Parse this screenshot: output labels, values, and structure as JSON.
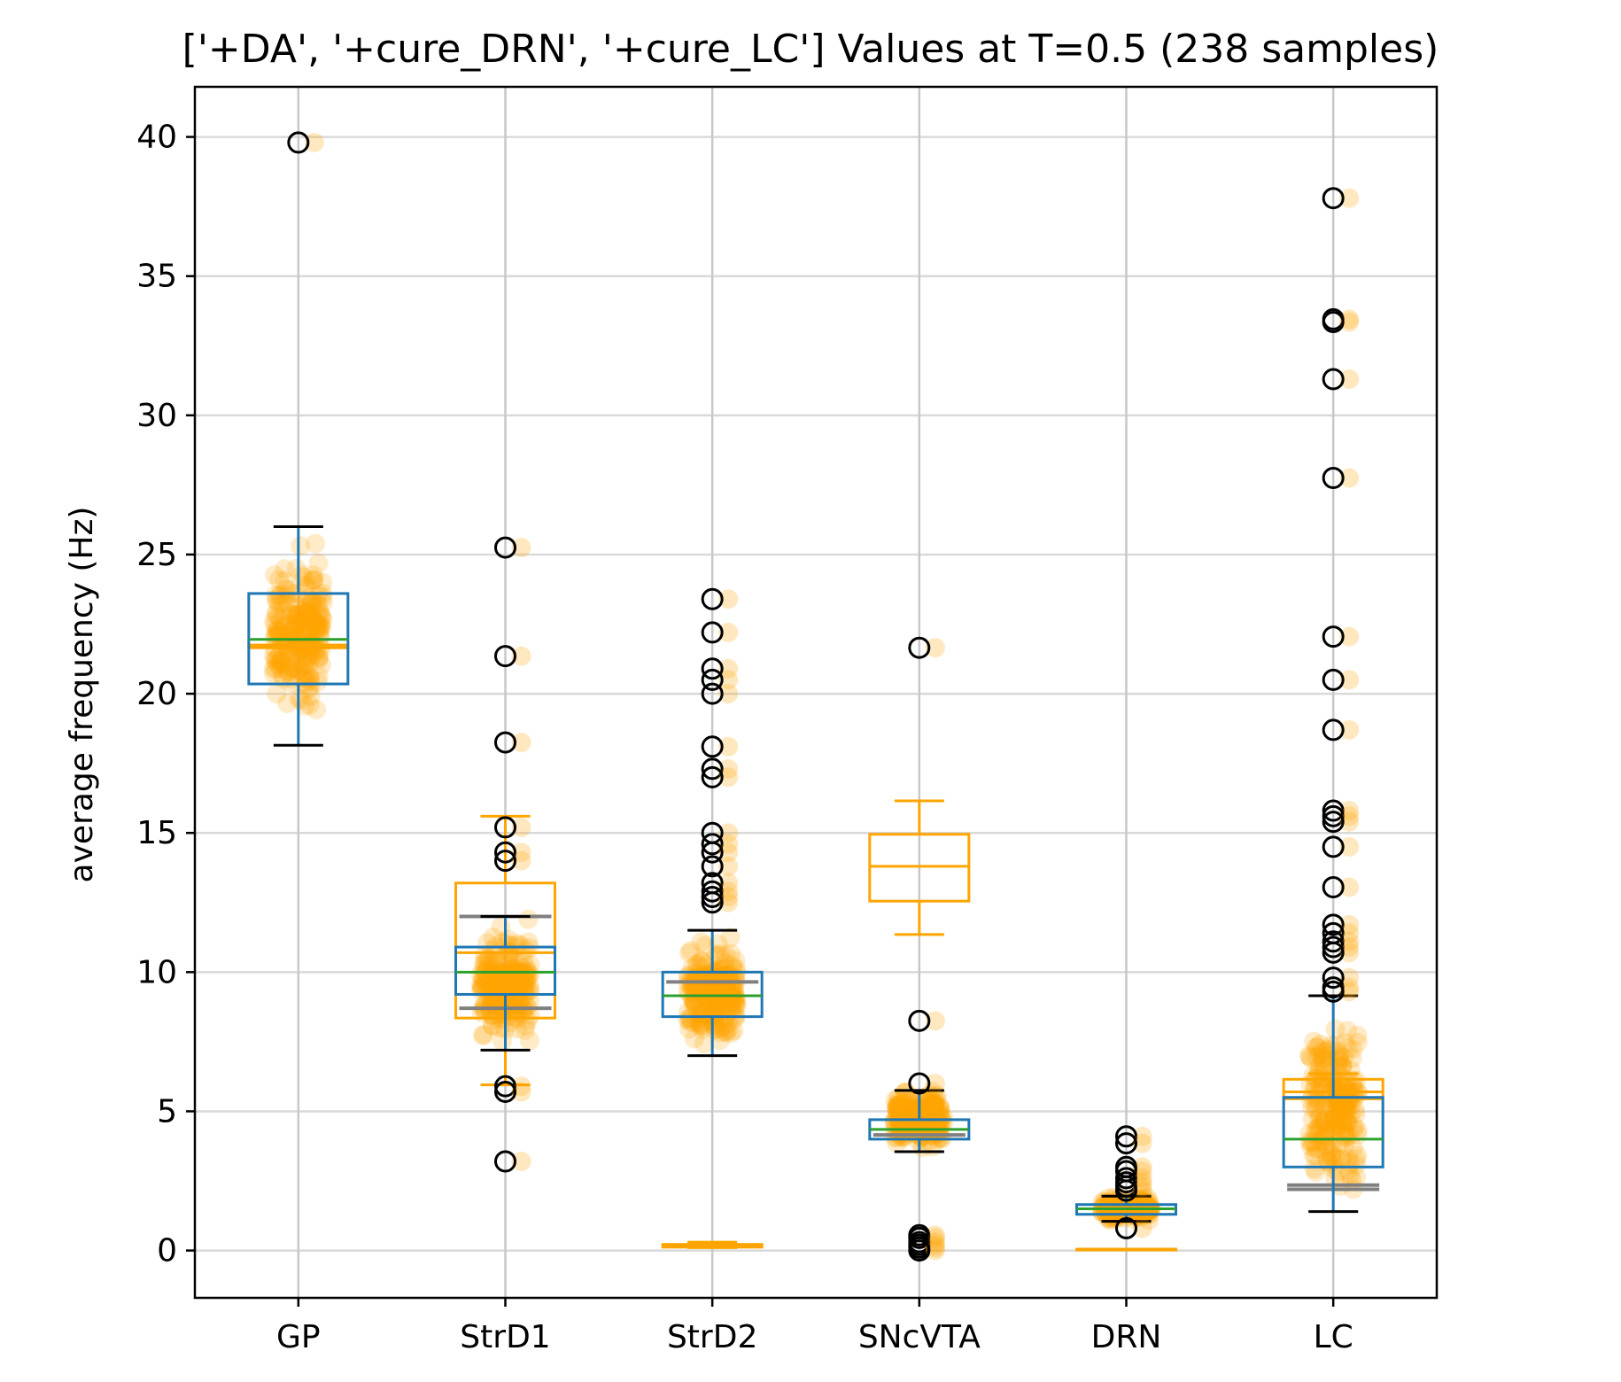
{
  "chart_data": {
    "type": "box",
    "title": "['+DA', '+cure_DRN', '+cure_LC'] Values at T=0.5 (238 samples)",
    "xlabel": "",
    "ylabel": "average frequency (Hz)",
    "ylim": [
      -1.7,
      41.8
    ],
    "yticks": [
      0,
      5,
      10,
      15,
      20,
      25,
      30,
      35,
      40
    ],
    "grid": true,
    "categories": [
      "GP",
      "StrD1",
      "StrD2",
      "SNcVTA",
      "DRN",
      "LC"
    ],
    "colors": {
      "main_box": "#1f77b4",
      "reference_box": "#ffa500",
      "median": "#2ca02c",
      "whisker_cap": "#000000",
      "points": "#ffa500",
      "grid": "#d9d9d9",
      "lower_quartile_marker": "#808080"
    },
    "series": [
      {
        "name": "main",
        "boxes": [
          {
            "category": "GP",
            "whislo": 18.15,
            "q1": 20.35,
            "median": 21.95,
            "q3": 23.6,
            "whishi": 26.0,
            "fliers": [
              39.8
            ]
          },
          {
            "category": "StrD1",
            "whislo": 7.2,
            "q1": 9.2,
            "median": 10.0,
            "q3": 10.9,
            "whishi": 12.0,
            "fliers": [
              25.25,
              21.35,
              18.25,
              15.2,
              14.3,
              14.0,
              5.9,
              5.7,
              3.2
            ]
          },
          {
            "category": "StrD2",
            "whislo": 7.0,
            "q1": 8.4,
            "median": 9.15,
            "q3": 10.0,
            "whishi": 11.5,
            "fliers": [
              23.4,
              22.2,
              20.9,
              20.5,
              20.0,
              18.1,
              17.3,
              17.0,
              15.0,
              14.6,
              14.3,
              13.8,
              13.2,
              12.9,
              12.7,
              12.5
            ]
          },
          {
            "category": "SNcVTA",
            "whislo": 3.55,
            "q1": 4.0,
            "median": 4.35,
            "q3": 4.7,
            "whishi": 5.75,
            "fliers": [
              21.65,
              8.25,
              6.0,
              0.55,
              0.45,
              0.3,
              0.2,
              0.1,
              0.0
            ]
          },
          {
            "category": "DRN",
            "whislo": 1.05,
            "q1": 1.3,
            "median": 1.5,
            "q3": 1.65,
            "whishi": 1.95,
            "fliers": [
              4.1,
              3.85,
              3.0,
              2.85,
              2.6,
              2.45,
              2.3,
              2.15,
              0.8
            ]
          },
          {
            "category": "LC",
            "whislo": 1.4,
            "q1": 3.0,
            "median": 4.0,
            "q3": 5.5,
            "whishi": 9.15,
            "fliers": [
              37.8,
              33.45,
              33.35,
              31.3,
              27.75,
              22.05,
              20.5,
              18.7,
              15.8,
              15.6,
              15.4,
              14.5,
              13.05,
              11.7,
              11.4,
              11.1,
              10.9,
              10.7,
              9.8,
              9.45,
              9.3
            ]
          }
        ]
      },
      {
        "name": "reference",
        "boxes": [
          {
            "category": "GP",
            "whislo": 21.65,
            "q1": 21.65,
            "median": 21.7,
            "q3": 21.75,
            "whishi": 21.75
          },
          {
            "category": "StrD1",
            "whislo": 5.95,
            "q1": 8.35,
            "median": 10.7,
            "q3": 13.2,
            "whishi": 15.6
          },
          {
            "category": "StrD2",
            "whislo": 0.1,
            "q1": 0.12,
            "median": 0.18,
            "q3": 0.22,
            "whishi": 0.3
          },
          {
            "category": "SNcVTA",
            "whislo": 11.35,
            "q1": 12.55,
            "median": 13.8,
            "q3": 14.95,
            "whishi": 16.15
          },
          {
            "category": "DRN",
            "whislo": 0.05,
            "q1": 0.05,
            "median": 0.05,
            "q3": 0.05,
            "whishi": 0.05
          },
          {
            "category": "LC",
            "whislo": 5.45,
            "q1": 5.45,
            "median": 5.7,
            "q3": 6.15,
            "whishi": 6.35
          }
        ]
      }
    ],
    "point_clouds": [
      {
        "category": "GP",
        "range": [
          18.0,
          26.1
        ]
      },
      {
        "category": "StrD1",
        "range": [
          7.0,
          12.2
        ]
      },
      {
        "category": "StrD2",
        "range": [
          6.9,
          11.7
        ]
      },
      {
        "category": "SNcVTA",
        "range": [
          3.5,
          6.0
        ]
      },
      {
        "category": "DRN",
        "range": [
          1.0,
          2.0
        ]
      },
      {
        "category": "LC",
        "range": [
          1.3,
          9.2
        ]
      }
    ],
    "lower_quartile_markers": [
      {
        "category": "StrD1",
        "value": 12.0
      },
      {
        "category": "StrD1",
        "value": 8.7
      },
      {
        "category": "StrD2",
        "value": 9.65
      },
      {
        "category": "SNcVTA",
        "value": 4.15
      },
      {
        "category": "LC",
        "value": 2.35
      },
      {
        "category": "LC",
        "value": 2.2
      }
    ]
  }
}
